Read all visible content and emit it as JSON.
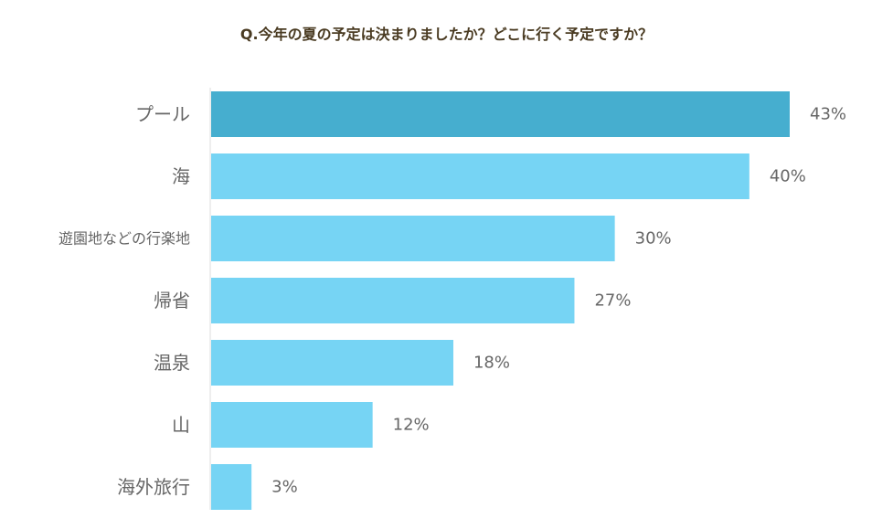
{
  "chart_data": {
    "type": "bar",
    "orientation": "horizontal",
    "title": "Q.今年の夏の予定は決まりましたか？どこに行く予定ですか？",
    "categories": [
      "プール",
      "海",
      "遊園地などの行楽地",
      "帰省",
      "温泉",
      "山",
      "海外旅行"
    ],
    "values": [
      43,
      40,
      30,
      27,
      18,
      12,
      3
    ],
    "value_labels": [
      "43%",
      "40%",
      "30%",
      "27%",
      "18%",
      "12%",
      "3%"
    ],
    "unit": "%",
    "xlim": [
      0,
      43
    ],
    "grid": false,
    "legend": "none",
    "colors": {
      "highlight": "#46aecf",
      "bar": "#76d4f4",
      "axis": "#dddddd",
      "label": "#666666",
      "title": "#4a3b22"
    }
  }
}
